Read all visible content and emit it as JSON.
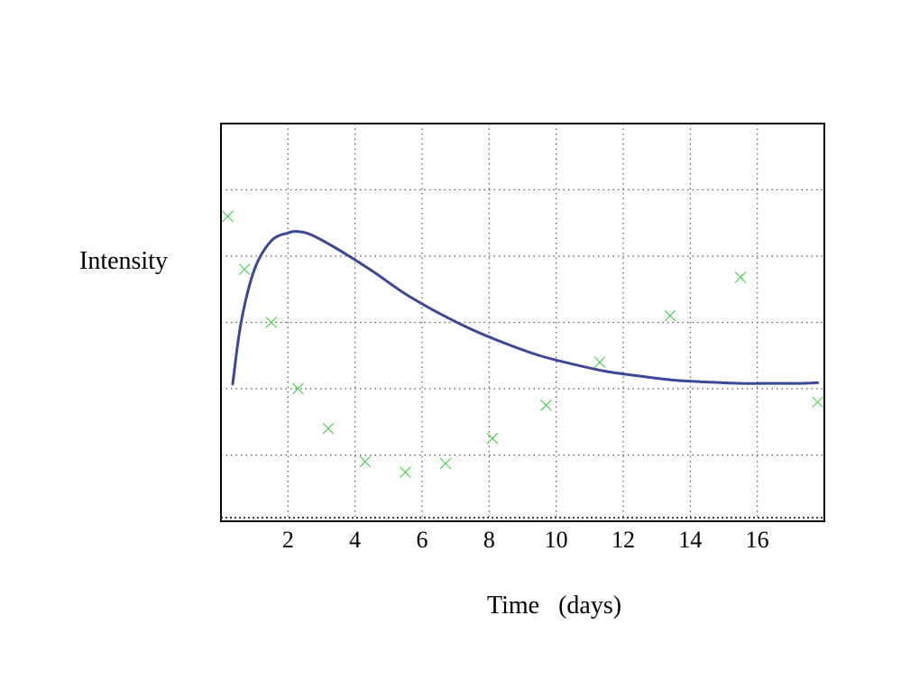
{
  "chart_data": {
    "type": "line",
    "title": "",
    "xlabel": "Time   (days)",
    "ylabel": "Intensity",
    "xlim": [
      0,
      18
    ],
    "ylim": [
      0,
      6
    ],
    "x_ticks": [
      2,
      4,
      6,
      8,
      10,
      12,
      14,
      16
    ],
    "grid": true,
    "series": [
      {
        "color": "#3d4799",
        "x": [
          0.35,
          0.6,
          1.0,
          1.5,
          2.0,
          2.3,
          2.7,
          3.5,
          4.5,
          5.5,
          6.5,
          7.5,
          8.5,
          9.5,
          10.5,
          11.5,
          12.5,
          13.5,
          14.5,
          15.5,
          16.5,
          17.3,
          17.8
        ],
        "y": [
          2.07,
          3.0,
          3.8,
          4.23,
          4.35,
          4.37,
          4.32,
          4.1,
          3.78,
          3.43,
          3.14,
          2.89,
          2.68,
          2.5,
          2.37,
          2.26,
          2.19,
          2.13,
          2.1,
          2.08,
          2.08,
          2.08,
          2.09
        ]
      }
    ],
    "scatter": {
      "color": "#33cc33",
      "x": [
        0.2,
        0.7,
        1.5,
        2.3,
        3.2,
        4.3,
        5.5,
        6.7,
        8.1,
        9.7,
        11.3,
        13.4,
        15.5,
        17.8
      ],
      "y": [
        4.6,
        3.8,
        3.0,
        2.0,
        1.4,
        0.9,
        0.74,
        0.87,
        1.25,
        1.75,
        2.4,
        3.1,
        3.68,
        1.8
      ]
    }
  }
}
